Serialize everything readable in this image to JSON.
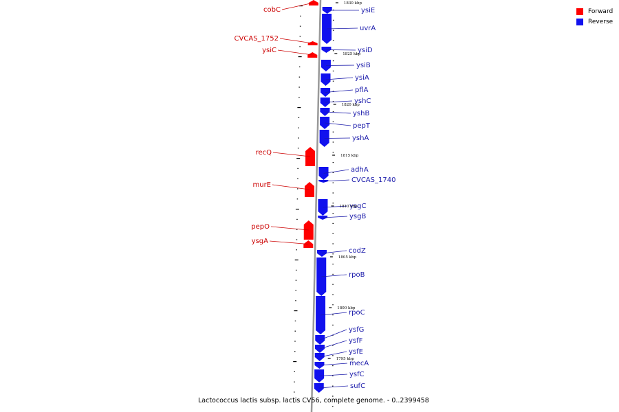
{
  "colors": {
    "forward": "#ff0000",
    "reverse": "#1111ee",
    "backbone": "#999999",
    "label_forward": "#cc0000",
    "label_reverse": "#1a1aaa"
  },
  "legend": [
    {
      "label": "Forward",
      "strand": "forward"
    },
    {
      "label": "Reverse",
      "strand": "reverse"
    }
  ],
  "caption": "Lactococcus lactis subsp. lactis CV56, complete genome. - 0..2399458",
  "scale_labels": [
    "1830 kbp",
    "1825 kbp",
    "1820 kbp",
    "1815 kbp",
    "1810 kbp",
    "1805 kbp",
    "1800 kbp",
    "1795 kbp"
  ],
  "genes": [
    {
      "name": "cobC",
      "strand": "forward"
    },
    {
      "name": "CVCAS_1752",
      "strand": "forward"
    },
    {
      "name": "ysiC",
      "strand": "forward"
    },
    {
      "name": "recQ",
      "strand": "forward"
    },
    {
      "name": "murE",
      "strand": "forward"
    },
    {
      "name": "pepO",
      "strand": "forward"
    },
    {
      "name": "ysgA",
      "strand": "forward"
    },
    {
      "name": "ysiE",
      "strand": "reverse"
    },
    {
      "name": "uvrA",
      "strand": "reverse"
    },
    {
      "name": "ysiD",
      "strand": "reverse"
    },
    {
      "name": "ysiB",
      "strand": "reverse"
    },
    {
      "name": "ysiA",
      "strand": "reverse"
    },
    {
      "name": "pflA",
      "strand": "reverse"
    },
    {
      "name": "yshC",
      "strand": "reverse"
    },
    {
      "name": "yshB",
      "strand": "reverse"
    },
    {
      "name": "pepT",
      "strand": "reverse"
    },
    {
      "name": "yshA",
      "strand": "reverse"
    },
    {
      "name": "adhA",
      "strand": "reverse"
    },
    {
      "name": "CVCAS_1740",
      "strand": "reverse"
    },
    {
      "name": "ysgC",
      "strand": "reverse"
    },
    {
      "name": "ysgB",
      "strand": "reverse"
    },
    {
      "name": "codZ",
      "strand": "reverse"
    },
    {
      "name": "rpoB",
      "strand": "reverse"
    },
    {
      "name": "rpoC",
      "strand": "reverse"
    },
    {
      "name": "ysfG",
      "strand": "reverse"
    },
    {
      "name": "ysfF",
      "strand": "reverse"
    },
    {
      "name": "ysfE",
      "strand": "reverse"
    },
    {
      "name": "mecA",
      "strand": "reverse"
    },
    {
      "name": "ysfC",
      "strand": "reverse"
    },
    {
      "name": "sufC",
      "strand": "reverse"
    }
  ]
}
